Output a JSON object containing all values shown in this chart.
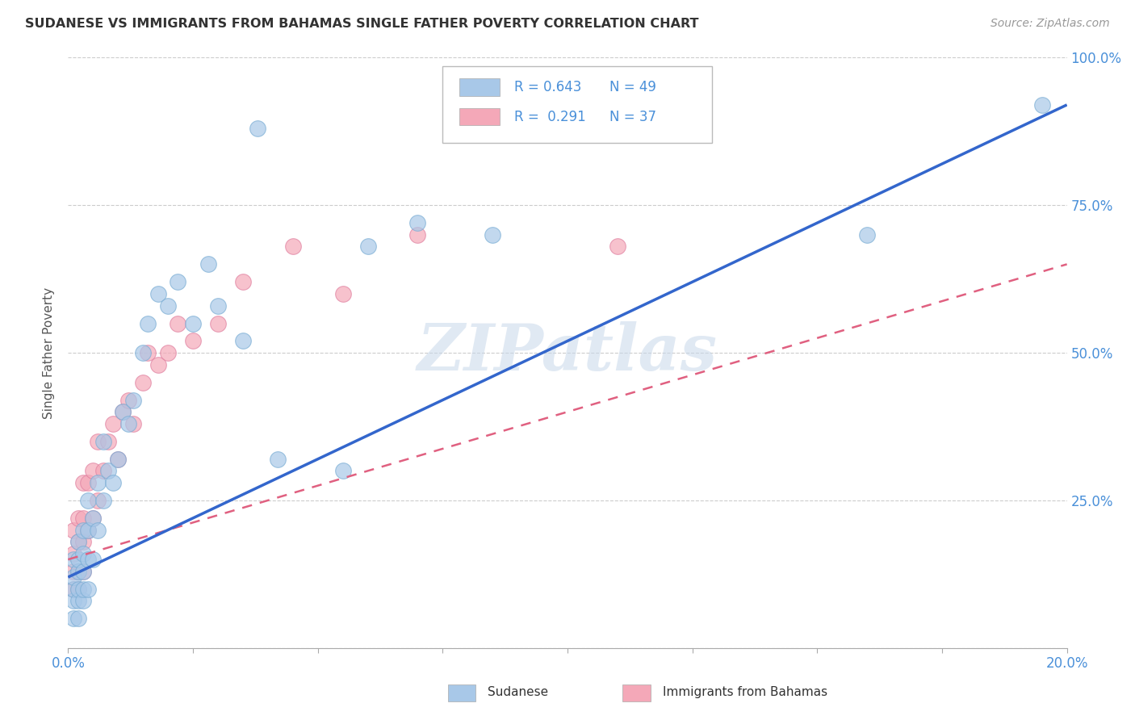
{
  "title": "SUDANESE VS IMMIGRANTS FROM BAHAMAS SINGLE FATHER POVERTY CORRELATION CHART",
  "source": "Source: ZipAtlas.com",
  "ylabel": "Single Father Poverty",
  "xlim": [
    0.0,
    0.2
  ],
  "ylim": [
    0.0,
    1.0
  ],
  "xticks": [
    0.0,
    0.025,
    0.05,
    0.075,
    0.1,
    0.125,
    0.15,
    0.175,
    0.2
  ],
  "xtick_labels_show": [
    "0.0%",
    "",
    "",
    "",
    "",
    "",
    "",
    "",
    "20.0%"
  ],
  "yticks": [
    0.0,
    0.25,
    0.5,
    0.75,
    1.0
  ],
  "ytick_labels": [
    "",
    "25.0%",
    "50.0%",
    "75.0%",
    "100.0%"
  ],
  "sudanese_color": "#a8c8e8",
  "sudanese_edge": "#7aadd4",
  "bahamas_color": "#f4a8b8",
  "bahamas_edge": "#e080a0",
  "line_blue": "#3366cc",
  "line_pink": "#e06080",
  "sudanese_R": 0.643,
  "sudanese_N": 49,
  "bahamas_R": 0.291,
  "bahamas_N": 37,
  "watermark": "ZIPatlas",
  "sudanese_x": [
    0.001,
    0.001,
    0.001,
    0.001,
    0.001,
    0.002,
    0.002,
    0.002,
    0.002,
    0.002,
    0.002,
    0.003,
    0.003,
    0.003,
    0.003,
    0.003,
    0.004,
    0.004,
    0.004,
    0.004,
    0.005,
    0.005,
    0.006,
    0.006,
    0.007,
    0.007,
    0.008,
    0.009,
    0.01,
    0.011,
    0.012,
    0.013,
    0.015,
    0.016,
    0.018,
    0.02,
    0.022,
    0.025,
    0.028,
    0.03,
    0.035,
    0.038,
    0.042,
    0.055,
    0.06,
    0.07,
    0.085,
    0.16,
    0.195
  ],
  "sudanese_y": [
    0.05,
    0.08,
    0.1,
    0.12,
    0.15,
    0.05,
    0.08,
    0.1,
    0.13,
    0.15,
    0.18,
    0.08,
    0.1,
    0.13,
    0.16,
    0.2,
    0.1,
    0.15,
    0.2,
    0.25,
    0.15,
    0.22,
    0.2,
    0.28,
    0.25,
    0.35,
    0.3,
    0.28,
    0.32,
    0.4,
    0.38,
    0.42,
    0.5,
    0.55,
    0.6,
    0.58,
    0.62,
    0.55,
    0.65,
    0.58,
    0.52,
    0.88,
    0.32,
    0.3,
    0.68,
    0.72,
    0.7,
    0.7,
    0.92
  ],
  "bahamas_x": [
    0.001,
    0.001,
    0.001,
    0.001,
    0.002,
    0.002,
    0.002,
    0.002,
    0.003,
    0.003,
    0.003,
    0.003,
    0.004,
    0.004,
    0.005,
    0.005,
    0.006,
    0.006,
    0.007,
    0.008,
    0.009,
    0.01,
    0.011,
    0.012,
    0.013,
    0.015,
    0.016,
    0.018,
    0.02,
    0.022,
    0.025,
    0.03,
    0.035,
    0.045,
    0.055,
    0.07,
    0.11
  ],
  "bahamas_y": [
    0.1,
    0.13,
    0.16,
    0.2,
    0.1,
    0.13,
    0.18,
    0.22,
    0.13,
    0.18,
    0.22,
    0.28,
    0.2,
    0.28,
    0.22,
    0.3,
    0.25,
    0.35,
    0.3,
    0.35,
    0.38,
    0.32,
    0.4,
    0.42,
    0.38,
    0.45,
    0.5,
    0.48,
    0.5,
    0.55,
    0.52,
    0.55,
    0.62,
    0.68,
    0.6,
    0.7,
    0.68
  ],
  "blue_line_x0": 0.0,
  "blue_line_y0": 0.12,
  "blue_line_x1": 0.2,
  "blue_line_y1": 0.92,
  "pink_line_x0": 0.0,
  "pink_line_y0": 0.15,
  "pink_line_x1": 0.2,
  "pink_line_y1": 0.65
}
